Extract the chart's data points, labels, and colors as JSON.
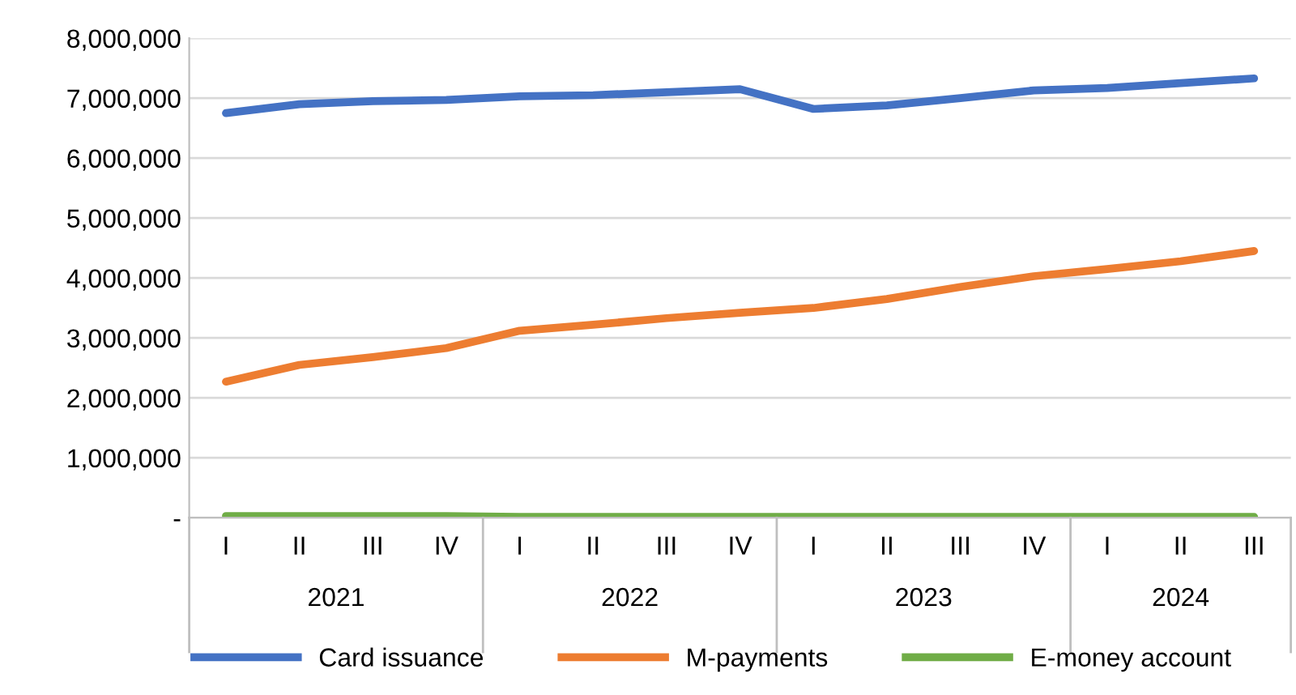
{
  "chart_data": {
    "type": "line",
    "categories": [
      "I",
      "II",
      "III",
      "IV",
      "I",
      "II",
      "III",
      "IV",
      "I",
      "II",
      "III",
      "IV",
      "I",
      "II",
      "III"
    ],
    "annotations": [
      "2021",
      "2022",
      "2023",
      "2024"
    ],
    "series": [
      {
        "name": "Card issuance",
        "color": "#4472c4",
        "values": [
          6750000,
          6900000,
          6950000,
          6970000,
          7030000,
          7050000,
          7100000,
          7150000,
          6820000,
          6880000,
          7000000,
          7130000,
          7170000,
          7250000,
          7330000
        ]
      },
      {
        "name": "M-payments",
        "color": "#ed7d31",
        "values": [
          2270000,
          2550000,
          2680000,
          2830000,
          3120000,
          3220000,
          3330000,
          3420000,
          3500000,
          3650000,
          3850000,
          4030000,
          4150000,
          4280000,
          4450000
        ]
      },
      {
        "name": "E-money account",
        "color": "#70ad47",
        "values": [
          30000,
          30000,
          30000,
          30000,
          15000,
          15000,
          15000,
          15000,
          15000,
          15000,
          15000,
          15000,
          15000,
          15000,
          15000
        ]
      }
    ],
    "ylim": [
      0,
      8000000
    ],
    "yticks": [
      {
        "value": 0,
        "label": "-"
      },
      {
        "value": 1000000,
        "label": "1,000,000"
      },
      {
        "value": 2000000,
        "label": "2,000,000"
      },
      {
        "value": 3000000,
        "label": "3,000,000"
      },
      {
        "value": 4000000,
        "label": "4,000,000"
      },
      {
        "value": 5000000,
        "label": "5,000,000"
      },
      {
        "value": 6000000,
        "label": "6,000,000"
      },
      {
        "value": 7000000,
        "label": "7,000,000"
      },
      {
        "value": 8000000,
        "label": "8,000,000"
      }
    ],
    "grid": "y",
    "legend": "bottom",
    "marker": "none",
    "line_style": "solid"
  }
}
